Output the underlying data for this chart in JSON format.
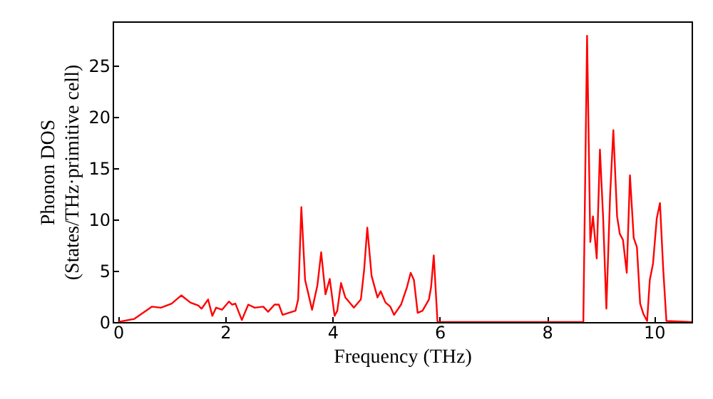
{
  "chart_data": {
    "type": "line",
    "xlabel": "Frequency (THz)",
    "ylabel": "Phonon DOS\n(States/THz·primitive cell)",
    "xlim": [
      -0.1,
      10.7
    ],
    "ylim": [
      0,
      29.3
    ],
    "xticks": [
      0,
      2,
      4,
      6,
      8,
      10
    ],
    "yticks": [
      0,
      5,
      10,
      15,
      20,
      25
    ],
    "grid": false,
    "series": [
      {
        "color": "#ff0000",
        "x": [
          0,
          0.3,
          0.63,
          0.8,
          1.0,
          1.18,
          1.35,
          1.5,
          1.56,
          1.68,
          1.76,
          1.83,
          1.94,
          2.07,
          2.13,
          2.19,
          2.31,
          2.43,
          2.55,
          2.71,
          2.8,
          2.92,
          3.0,
          3.07,
          3.31,
          3.36,
          3.42,
          3.49,
          3.62,
          3.72,
          3.79,
          3.87,
          3.95,
          4.04,
          4.09,
          4.16,
          4.24,
          4.4,
          4.53,
          4.59,
          4.65,
          4.73,
          4.84,
          4.9,
          4.99,
          5.08,
          5.15,
          5.28,
          5.39,
          5.46,
          5.52,
          5.59,
          5.68,
          5.8,
          5.84,
          5.89,
          5.96,
          8.68,
          8.75,
          8.81,
          8.86,
          8.93,
          8.99,
          9.05,
          9.11,
          9.18,
          9.24,
          9.31,
          9.36,
          9.42,
          9.49,
          9.55,
          9.62,
          9.68,
          9.74,
          9.8,
          9.87,
          9.92,
          9.98,
          10.05,
          10.11,
          10.17,
          10.23,
          10.7
        ],
        "values": [
          0,
          0.3,
          1.5,
          1.4,
          1.8,
          2.6,
          1.9,
          1.6,
          1.3,
          2.2,
          0.6,
          1.4,
          1.2,
          2.0,
          1.7,
          1.8,
          0.2,
          1.7,
          1.4,
          1.5,
          1.0,
          1.7,
          1.7,
          0.7,
          1.1,
          2.2,
          11.2,
          4.1,
          1.2,
          3.6,
          6.8,
          2.7,
          4.2,
          0.6,
          1.1,
          3.8,
          2.4,
          1.4,
          2.2,
          5.0,
          9.2,
          4.5,
          2.4,
          3.0,
          1.9,
          1.5,
          0.7,
          1.7,
          3.4,
          4.8,
          4.1,
          0.9,
          1.1,
          2.2,
          3.4,
          6.5,
          0,
          0,
          27.9,
          7.8,
          10.3,
          6.2,
          16.8,
          10.1,
          1.3,
          12.4,
          18.7,
          10.3,
          8.6,
          8.0,
          4.8,
          14.3,
          8.2,
          7.3,
          1.8,
          0.8,
          0.1,
          4.1,
          5.7,
          10.1,
          11.6,
          5.2,
          0.1,
          0
        ]
      }
    ]
  }
}
